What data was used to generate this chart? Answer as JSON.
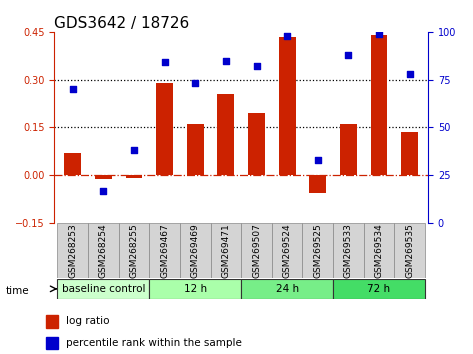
{
  "title": "GDS3642 / 18726",
  "samples": [
    "GSM268253",
    "GSM268254",
    "GSM268255",
    "GSM269467",
    "GSM269469",
    "GSM269471",
    "GSM269507",
    "GSM269524",
    "GSM269525",
    "GSM269533",
    "GSM269534",
    "GSM269535"
  ],
  "log_ratio": [
    0.07,
    -0.012,
    -0.008,
    0.29,
    0.162,
    0.255,
    0.195,
    0.435,
    -0.055,
    0.162,
    0.44,
    0.135
  ],
  "percentile_rank": [
    70,
    17,
    38,
    84,
    73,
    85,
    82,
    98,
    33,
    88,
    99,
    78
  ],
  "groups": [
    {
      "label": "baseline control",
      "start": 0,
      "end": 3,
      "color": "#ccffcc"
    },
    {
      "label": "12 h",
      "start": 3,
      "end": 6,
      "color": "#aaffaa"
    },
    {
      "label": "24 h",
      "start": 6,
      "end": 9,
      "color": "#77ee88"
    },
    {
      "label": "72 h",
      "start": 9,
      "end": 12,
      "color": "#44dd66"
    }
  ],
  "bar_color": "#cc2200",
  "dot_color": "#0000cc",
  "ylim_left": [
    -0.15,
    0.45
  ],
  "ylim_right": [
    0,
    100
  ],
  "yticks_left": [
    -0.15,
    0.0,
    0.15,
    0.3,
    0.45
  ],
  "yticks_right": [
    0,
    25,
    50,
    75,
    100
  ],
  "hlines": [
    0.15,
    0.3
  ],
  "title_fontsize": 11,
  "tick_fontsize": 7,
  "label_fontsize": 7.5,
  "legend_fontsize": 7.5,
  "sample_fontsize": 6.5
}
